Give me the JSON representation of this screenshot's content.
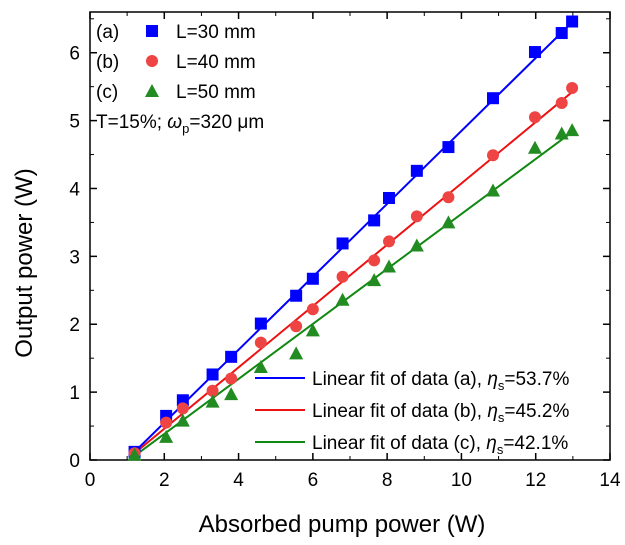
{
  "chart_data": {
    "type": "scatter",
    "xlabel": "Absorbed pump power (W)",
    "ylabel": "Output power (W)",
    "xlim": [
      0,
      14
    ],
    "ylim": [
      0,
      6.6
    ],
    "x_ticks": [
      "0",
      "2",
      "4",
      "6",
      "8",
      "10",
      "12",
      "14"
    ],
    "y_ticks": [
      "0",
      "1",
      "2",
      "3",
      "4",
      "5",
      "6"
    ],
    "grid": false,
    "legend_placement": "top-left",
    "condition_text": {
      "prefix": "T=15%; ",
      "symbol": "ω",
      "subscript": "p",
      "suffix": "=320 μm"
    },
    "series": [
      {
        "label": "(a)",
        "name": "L=30 mm",
        "marker": "square",
        "color": "#0000ff",
        "points": [
          [
            1.2,
            0.12
          ],
          [
            2.05,
            0.65
          ],
          [
            2.5,
            0.88
          ],
          [
            3.3,
            1.26
          ],
          [
            3.8,
            1.52
          ],
          [
            4.6,
            2.01
          ],
          [
            5.55,
            2.42
          ],
          [
            6.0,
            2.67
          ],
          [
            6.8,
            3.19
          ],
          [
            7.65,
            3.53
          ],
          [
            8.05,
            3.86
          ],
          [
            8.8,
            4.26
          ],
          [
            9.65,
            4.61
          ],
          [
            10.85,
            5.33
          ],
          [
            11.98,
            6.01
          ],
          [
            12.7,
            6.29
          ],
          [
            12.98,
            6.46
          ]
        ]
      },
      {
        "label": "(b)",
        "name": "L=40 mm",
        "marker": "circle",
        "color": "#ee4444",
        "points": [
          [
            1.2,
            0.1
          ],
          [
            2.05,
            0.55
          ],
          [
            2.5,
            0.76
          ],
          [
            3.3,
            1.02
          ],
          [
            3.8,
            1.2
          ],
          [
            4.6,
            1.73
          ],
          [
            5.55,
            1.97
          ],
          [
            6.0,
            2.22
          ],
          [
            6.8,
            2.7
          ],
          [
            7.65,
            2.94
          ],
          [
            8.05,
            3.22
          ],
          [
            8.8,
            3.59
          ],
          [
            9.65,
            3.87
          ],
          [
            10.85,
            4.49
          ],
          [
            11.98,
            5.05
          ],
          [
            12.7,
            5.26
          ],
          [
            12.98,
            5.48
          ]
        ]
      },
      {
        "label": "(c)",
        "name": "L=50 mm",
        "marker": "triangle",
        "color": "#228b22",
        "points": [
          [
            1.2,
            0.08
          ],
          [
            2.05,
            0.34
          ],
          [
            2.5,
            0.58
          ],
          [
            3.3,
            0.86
          ],
          [
            3.8,
            0.97
          ],
          [
            4.6,
            1.37
          ],
          [
            5.55,
            1.57
          ],
          [
            6.0,
            1.91
          ],
          [
            6.8,
            2.36
          ],
          [
            7.65,
            2.65
          ],
          [
            8.05,
            2.85
          ],
          [
            8.8,
            3.16
          ],
          [
            9.65,
            3.5
          ],
          [
            10.85,
            3.97
          ],
          [
            11.98,
            4.6
          ],
          [
            12.7,
            4.81
          ],
          [
            12.98,
            4.86
          ]
        ]
      }
    ],
    "fits": [
      {
        "prefix": "Linear fit of data (a), ",
        "symbol": "η",
        "subscript": "s",
        "suffix": "=53.7%",
        "color": "#0000ff",
        "x_range": [
          1.2,
          13.0
        ],
        "y_range": [
          0.12,
          6.46
        ]
      },
      {
        "prefix": "Linear fit of data (b), ",
        "symbol": "η",
        "subscript": "s",
        "suffix": "=45.2%",
        "color": "#ee1111",
        "x_range": [
          1.2,
          13.0
        ],
        "y_range": [
          0.1,
          5.43
        ]
      },
      {
        "prefix": "Linear fit of data (c), ",
        "symbol": "η",
        "subscript": "s",
        "suffix": "=42.1%",
        "color": "#118811",
        "x_range": [
          1.2,
          13.0
        ],
        "y_range": [
          0.06,
          4.84
        ]
      }
    ]
  }
}
